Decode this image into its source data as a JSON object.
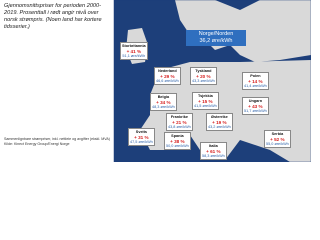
{
  "header": {
    "title": "Gjennomsnittspriser for perioden 2000-2019. Prosenttall i rødt angir nivå over norsk strømpris. (Noen land har kortere tidsserier.)"
  },
  "nordic": {
    "name": "Norge/Norden",
    "price": "36,2 øre/kWh"
  },
  "regions": [
    {
      "name": "Storbritannia",
      "change": "+ 41 %",
      "price": "51,1 øre/kWh"
    },
    {
      "name": "Nederland",
      "change": "+ 29 %",
      "price": "46,6 øre/kWh"
    },
    {
      "name": "Tyskland",
      "change": "+ 20 %",
      "price": "43,3 øre/kWh"
    },
    {
      "name": "Polen",
      "change": "+ 14 %",
      "price": "41,4 øre/kWh"
    },
    {
      "name": "Belgia",
      "change": "+ 34 %",
      "price": "48,3 øre/kWh"
    },
    {
      "name": "Tsjekkia",
      "change": "+ 15 %",
      "price": "41,5 øre/kWh"
    },
    {
      "name": "Ungarn",
      "change": "+ 43 %",
      "price": "51,7 øre/kWh"
    },
    {
      "name": "Frankrike",
      "change": "+ 21 %",
      "price": "43,8 øre/kWh"
    },
    {
      "name": "Østerrike",
      "change": "+ 19 %",
      "price": "43,2 øre/kWh"
    },
    {
      "name": "Sveits",
      "change": "+ 31 %",
      "price": "47,5 øre/kWh"
    },
    {
      "name": "Spania",
      "change": "+ 38 %",
      "price": "50,0 øre/kWh"
    },
    {
      "name": "Italia",
      "change": "+ 61 %",
      "price": "58,3 øre/kWh"
    },
    {
      "name": "Serbia",
      "change": "+ 52 %",
      "price": "55,0 øre/kWh"
    }
  ],
  "footer": [
    "Sammenlignbare strømpriser, inkl. nettleie og avgifter (ekskl. MVA)",
    "Kilde: Kinect Energy Group/Energi Norge"
  ]
}
